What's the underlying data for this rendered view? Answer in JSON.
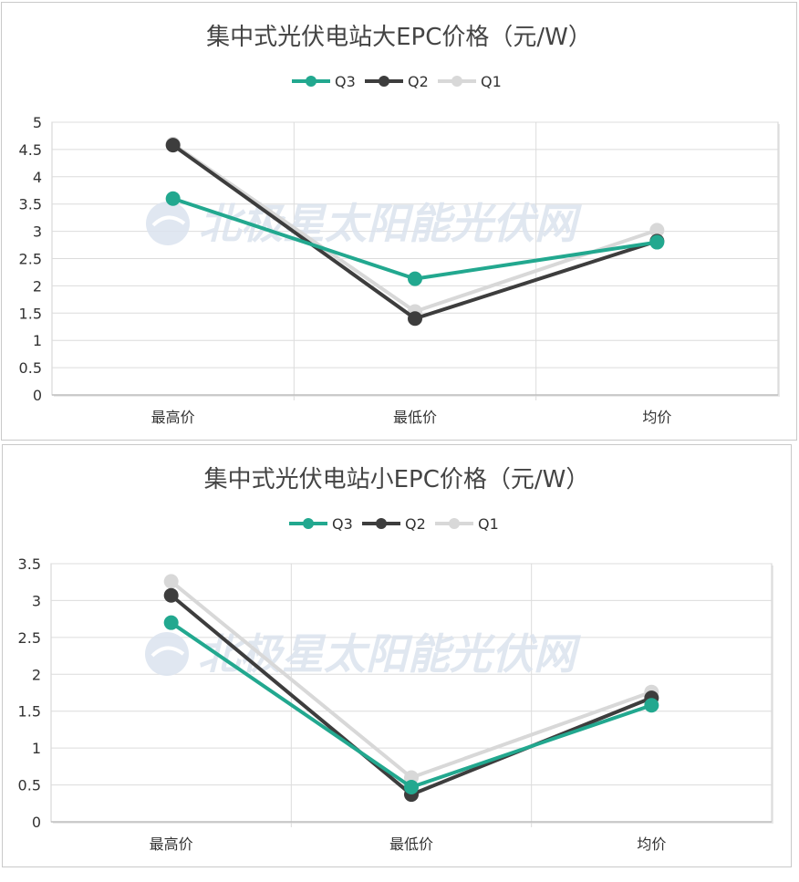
{
  "watermark": {
    "text": "北极星太阳能光伏网"
  },
  "colors": {
    "Q3": "#22a88f",
    "Q2": "#3d3d3d",
    "Q1": "#d8d8d8",
    "grid": "#dcdcdc",
    "text": "#333333"
  },
  "chart_data": [
    {
      "type": "line",
      "title": "集中式光伏电站大EPC价格（元/W）",
      "categories": [
        "最高价",
        "最低价",
        "均价"
      ],
      "ylim": [
        0,
        5
      ],
      "yticks": [
        "0",
        "0.5",
        "1",
        "1.5",
        "2",
        "2.5",
        "3",
        "3.5",
        "4",
        "4.5",
        "5"
      ],
      "grid": true,
      "legend_position": "top-center",
      "series": [
        {
          "name": "Q3",
          "values": [
            3.6,
            2.13,
            2.8
          ]
        },
        {
          "name": "Q2",
          "values": [
            4.58,
            1.4,
            2.82
          ]
        },
        {
          "name": "Q1",
          "values": [
            4.6,
            1.53,
            3.02
          ]
        }
      ]
    },
    {
      "type": "line",
      "title": "集中式光伏电站小EPC价格（元/W）",
      "categories": [
        "最高价",
        "最低价",
        "均价"
      ],
      "ylim": [
        0,
        3.5
      ],
      "yticks": [
        "0",
        "0.5",
        "1",
        "1.5",
        "2",
        "2.5",
        "3",
        "3.5"
      ],
      "grid": true,
      "legend_position": "top-center",
      "series": [
        {
          "name": "Q3",
          "values": [
            2.7,
            0.47,
            1.58
          ]
        },
        {
          "name": "Q2",
          "values": [
            3.07,
            0.37,
            1.68
          ]
        },
        {
          "name": "Q1",
          "values": [
            3.26,
            0.6,
            1.76
          ]
        }
      ]
    }
  ]
}
